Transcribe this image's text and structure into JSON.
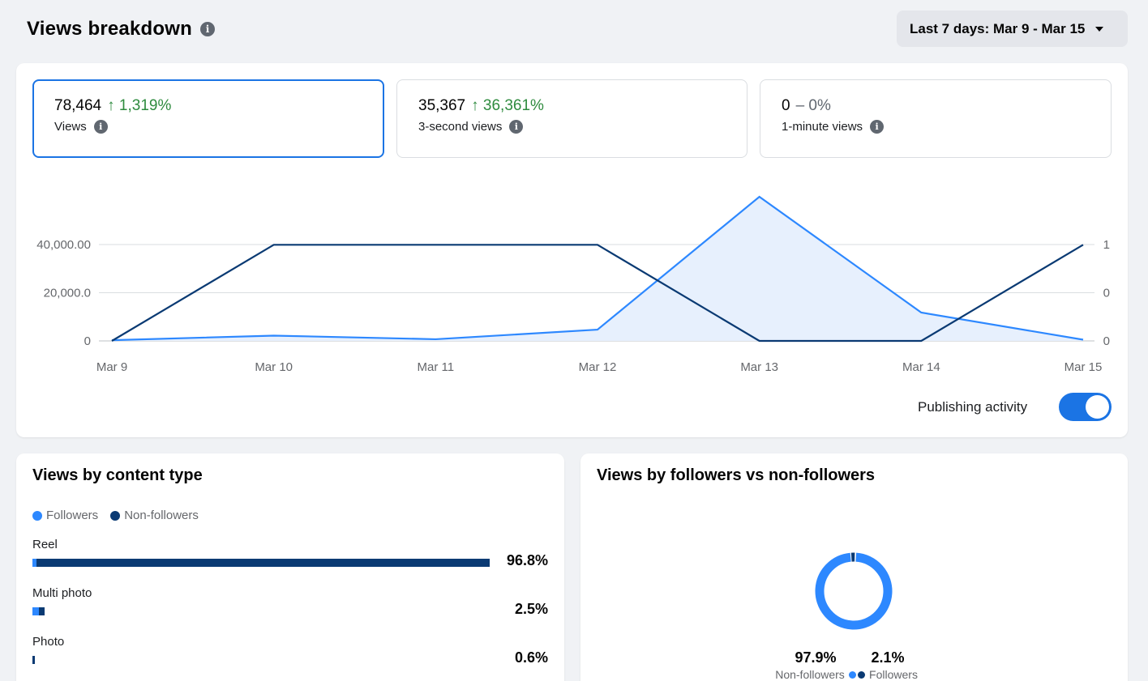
{
  "header": {
    "title": "Views breakdown",
    "info_icon": "i"
  },
  "date_range": {
    "label": "Last 7 days: Mar 9 - Mar 15"
  },
  "metrics": [
    {
      "value": "78,464",
      "change": "↑ 1,319%",
      "label": "Views",
      "active": true
    },
    {
      "value": "35,367",
      "change": "↑ 36,361%",
      "label": "3-second views",
      "active": false
    },
    {
      "value": "0",
      "change": "– 0%",
      "label": "1-minute views",
      "active": false
    }
  ],
  "colors": {
    "accent": "#1b74e4",
    "followers": "#2d88ff",
    "non_followers": "#0a3a73",
    "positive": "#2e8b3e",
    "area_fill": "#e7f0fd"
  },
  "chart_data": {
    "type": "line",
    "x": [
      "Mar 9",
      "Mar 10",
      "Mar 11",
      "Mar 12",
      "Mar 13",
      "Mar 14",
      "Mar 15"
    ],
    "series": [
      {
        "axis": "left",
        "values": [
          300,
          2200,
          700,
          4700,
          60000,
          11800,
          500
        ],
        "style": "area",
        "color": "#2d88ff"
      },
      {
        "axis": "right",
        "values": [
          0,
          1,
          1,
          1,
          0,
          0,
          1
        ],
        "style": "line",
        "color": "#0a3a73"
      }
    ],
    "y_left_ticks": [
      "0",
      "20,000.0",
      "40,000.00"
    ],
    "y_right_ticks": [
      "0",
      "0",
      "1"
    ],
    "y_left_range": [
      0,
      60000
    ],
    "y_right_range": [
      0,
      1.5
    ],
    "grid": true
  },
  "publishing": {
    "label": "Publishing activity",
    "on": true
  },
  "content_type": {
    "title": "Views by content type",
    "legend": [
      "Followers",
      "Non-followers"
    ],
    "rows": [
      {
        "name": "Reel",
        "pct": "96.8%",
        "total": 96.8,
        "followers_share": 0.009
      },
      {
        "name": "Multi photo",
        "pct": "2.5%",
        "total": 2.5,
        "followers_share": 0.55
      },
      {
        "name": "Photo",
        "pct": "0.6%",
        "total": 0.6,
        "followers_share": 0.0
      }
    ]
  },
  "followers_split": {
    "title": "Views by followers vs non-followers",
    "segments": [
      {
        "value": "97.9%",
        "label": "Non-followers",
        "share": 0.979,
        "color": "#2d88ff"
      },
      {
        "value": "2.1%",
        "label": "Followers",
        "share": 0.021,
        "color": "#0a3a73"
      }
    ]
  }
}
